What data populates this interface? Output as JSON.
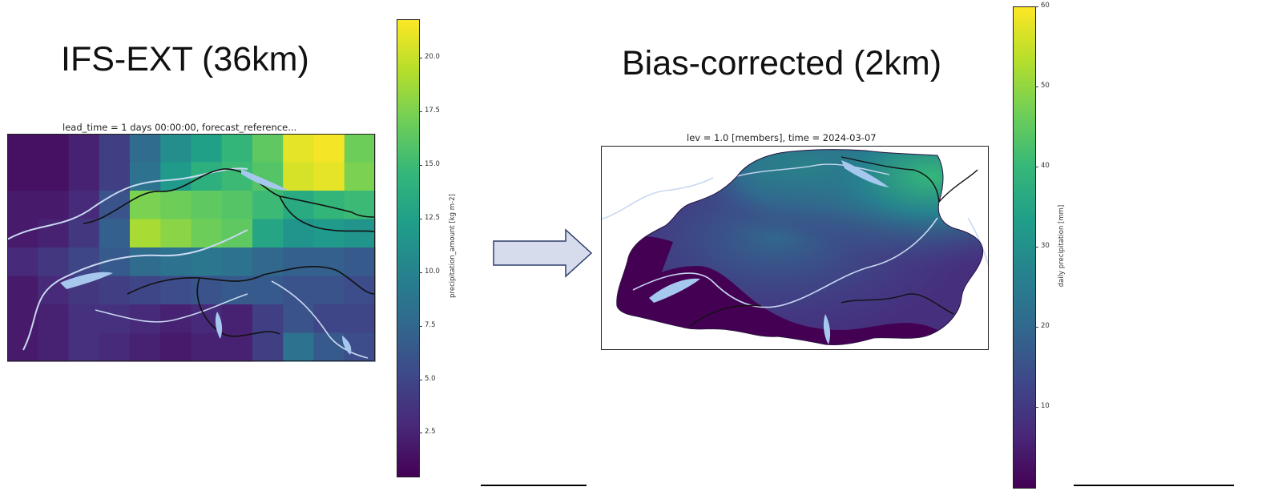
{
  "colors": {
    "viridis": [
      "#440154",
      "#482878",
      "#3e4989",
      "#31688e",
      "#26828e",
      "#1f9e89",
      "#35b779",
      "#6ece58",
      "#b5de2b",
      "#fde725"
    ],
    "lake": "#a6c8ee",
    "river": "#c8d8f0",
    "border": "#111111",
    "arrow_fill": "#d6dcec",
    "arrow_stroke": "#2f3f6a"
  },
  "left": {
    "heading": "IFS-EXT (36km)",
    "plot_title": "lead_time = 1 days 00:00:00, forecast_reference...",
    "colorbar_label": "precipitation_amount [kg m-2]",
    "colorbar_ticks": [
      "20.0",
      "17.5",
      "15.0",
      "12.5",
      "10.0",
      "7.5",
      "5.0",
      "2.5"
    ],
    "colorbar_range": [
      0.5,
      21.8
    ]
  },
  "right": {
    "heading": "Bias-corrected (2km)",
    "plot_title": "lev = 1.0 [members], time = 2024-03-07",
    "colorbar_label": "daily precipitation [mm]",
    "colorbar_ticks": [
      "60",
      "50",
      "40",
      "30",
      "20",
      "10"
    ],
    "colorbar_range": [
      0,
      60
    ]
  },
  "chart_data": [
    {
      "type": "heatmap",
      "title": "lead_time = 1 days 00:00:00, forecast_reference...",
      "colorbar_label": "precipitation_amount [kg m-2]",
      "vmin": 0.5,
      "vmax": 21.8,
      "grid": [
        [
          1.5,
          1.5,
          2.5,
          4.5,
          8.0,
          11.0,
          12.5,
          14.5,
          16.5,
          21.0,
          21.5,
          17.0
        ],
        [
          1.5,
          1.5,
          2.5,
          4.5,
          8.5,
          12.0,
          14.0,
          15.0,
          16.0,
          20.5,
          21.0,
          17.5
        ],
        [
          2.0,
          2.0,
          3.0,
          6.0,
          17.5,
          17.0,
          16.5,
          16.0,
          15.0,
          13.5,
          14.5,
          15.0
        ],
        [
          2.0,
          2.5,
          4.0,
          7.0,
          19.0,
          18.0,
          17.0,
          16.5,
          13.0,
          11.5,
          12.0,
          11.5
        ],
        [
          3.0,
          4.0,
          5.0,
          6.5,
          8.0,
          8.5,
          9.0,
          8.5,
          7.5,
          7.0,
          7.0,
          6.5
        ],
        [
          2.0,
          3.0,
          4.0,
          4.5,
          5.0,
          5.5,
          6.0,
          6.5,
          6.5,
          6.0,
          6.0,
          5.5
        ],
        [
          2.0,
          2.5,
          3.5,
          3.5,
          3.0,
          2.5,
          3.0,
          2.5,
          4.5,
          6.0,
          5.0,
          5.0
        ],
        [
          2.0,
          2.5,
          3.5,
          3.0,
          2.5,
          2.0,
          2.5,
          2.5,
          4.5,
          8.5,
          6.5,
          5.5
        ]
      ]
    },
    {
      "type": "heatmap",
      "title": "lev = 1.0 [members], time = 2024-03-07",
      "colorbar_label": "daily precipitation [mm]",
      "vmin": 0,
      "vmax": 60
    }
  ]
}
